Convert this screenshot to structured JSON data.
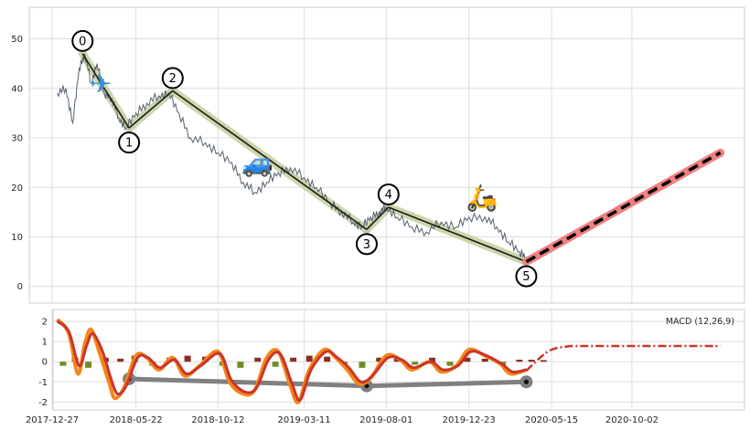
{
  "chart_data": [
    {
      "type": "line",
      "panel": "price",
      "grid": true,
      "xlim": [
        "2017-12-27",
        "2021-03-20"
      ],
      "ylim": [
        -3,
        56
      ],
      "y_ticks": [
        0,
        10,
        20,
        30,
        40,
        50
      ],
      "price_series": {
        "color": "#556070",
        "points": [
          [
            "2018-01-05",
            39
          ],
          [
            "2018-01-20",
            40
          ],
          [
            "2018-02-01",
            33
          ],
          [
            "2018-02-12",
            44
          ],
          [
            "2018-02-22",
            47
          ],
          [
            "2018-03-05",
            41
          ],
          [
            "2018-03-15",
            45
          ],
          [
            "2018-03-28",
            39
          ],
          [
            "2018-04-10",
            38
          ],
          [
            "2018-04-22",
            34
          ],
          [
            "2018-05-05",
            32
          ],
          [
            "2018-05-22",
            35
          ],
          [
            "2018-06-10",
            37
          ],
          [
            "2018-07-01",
            38.5
          ],
          [
            "2018-07-18",
            39
          ],
          [
            "2018-08-05",
            35
          ],
          [
            "2018-08-25",
            30
          ],
          [
            "2018-09-20",
            29
          ],
          [
            "2018-10-12",
            27
          ],
          [
            "2018-11-05",
            25
          ],
          [
            "2018-11-25",
            21
          ],
          [
            "2018-12-15",
            19
          ],
          [
            "2019-01-05",
            21
          ],
          [
            "2019-01-25",
            23
          ],
          [
            "2019-02-15",
            24
          ],
          [
            "2019-03-11",
            22
          ],
          [
            "2019-04-01",
            20
          ],
          [
            "2019-04-25",
            17
          ],
          [
            "2019-05-15",
            15
          ],
          [
            "2019-06-05",
            13
          ],
          [
            "2019-06-20",
            12
          ],
          [
            "2019-07-05",
            14
          ],
          [
            "2019-07-20",
            15
          ],
          [
            "2019-08-01",
            16
          ],
          [
            "2019-08-20",
            14
          ],
          [
            "2019-09-15",
            12
          ],
          [
            "2019-10-10",
            11
          ],
          [
            "2019-11-05",
            13
          ],
          [
            "2019-12-01",
            12
          ],
          [
            "2019-12-23",
            14
          ],
          [
            "2020-01-20",
            14
          ],
          [
            "2020-02-10",
            12
          ],
          [
            "2020-03-01",
            9
          ],
          [
            "2020-03-20",
            7
          ],
          [
            "2020-04-01",
            6
          ]
        ]
      },
      "wave_points": [
        {
          "label": "0",
          "date": "2018-02-18",
          "y": 47
        },
        {
          "label": "1",
          "date": "2018-05-10",
          "y": 32
        },
        {
          "label": "2",
          "date": "2018-07-25",
          "y": 39.5
        },
        {
          "label": "3",
          "date": "2019-06-28",
          "y": 11.5
        },
        {
          "label": "4",
          "date": "2019-08-05",
          "y": 16
        },
        {
          "label": "5",
          "date": "2020-04-01",
          "y": 5
        }
      ],
      "projection": {
        "from": {
          "date": "2020-04-01",
          "y": 5
        },
        "to": {
          "date": "2021-03-05",
          "y": 27
        }
      },
      "icons": [
        {
          "name": "airplane-icon",
          "glyph": "✈",
          "date": "2018-03-22",
          "y": 41
        },
        {
          "name": "car-icon",
          "glyph": "🚙",
          "date": "2018-12-20",
          "y": 25
        },
        {
          "name": "scooter-icon",
          "glyph": "🛵",
          "date": "2020-01-15",
          "y": 18
        }
      ]
    },
    {
      "type": "line",
      "panel": "macd",
      "title": "MACD (12,26,9)",
      "grid": true,
      "ylim": [
        -2.3,
        2.5
      ],
      "y_ticks": [
        -2,
        -1,
        0,
        1,
        2
      ],
      "x_tick_labels": [
        "2017-12-27",
        "2018-05-22",
        "2018-10-12",
        "2019-03-11",
        "2019-08-01",
        "2019-12-23",
        "2020-05-15",
        "2020-10-02"
      ],
      "macd_series": {
        "color": "#f58518",
        "points": [
          [
            "2018-01-05",
            2.1
          ],
          [
            "2018-01-25",
            1.4
          ],
          [
            "2018-02-10",
            -0.6
          ],
          [
            "2018-02-22",
            0.9
          ],
          [
            "2018-03-05",
            1.6
          ],
          [
            "2018-03-20",
            0.4
          ],
          [
            "2018-04-05",
            -1.0
          ],
          [
            "2018-04-15",
            -1.8
          ],
          [
            "2018-05-01",
            -1.3
          ],
          [
            "2018-05-22",
            0.3
          ],
          [
            "2018-06-10",
            0.2
          ],
          [
            "2018-07-01",
            -0.4
          ],
          [
            "2018-07-25",
            0.2
          ],
          [
            "2018-08-15",
            -0.7
          ],
          [
            "2018-09-10",
            -0.2
          ],
          [
            "2018-10-12",
            0.5
          ],
          [
            "2018-11-01",
            -1.0
          ],
          [
            "2018-11-25",
            -1.6
          ],
          [
            "2018-12-15",
            -1.4
          ],
          [
            "2019-01-05",
            0.2
          ],
          [
            "2019-01-25",
            0.5
          ],
          [
            "2019-02-15",
            -1.2
          ],
          [
            "2019-03-01",
            -2.0
          ],
          [
            "2019-03-20",
            -0.4
          ],
          [
            "2019-04-15",
            0.6
          ],
          [
            "2019-05-05",
            0.2
          ],
          [
            "2019-05-25",
            -0.4
          ],
          [
            "2019-06-15",
            -1.1
          ],
          [
            "2019-07-05",
            -0.8
          ],
          [
            "2019-08-01",
            0.3
          ],
          [
            "2019-08-25",
            0.1
          ],
          [
            "2019-09-15",
            -0.4
          ],
          [
            "2019-10-15",
            0.0
          ],
          [
            "2019-11-05",
            -0.5
          ],
          [
            "2019-12-01",
            -0.2
          ],
          [
            "2019-12-23",
            0.6
          ],
          [
            "2020-01-20",
            0.3
          ],
          [
            "2020-02-15",
            -0.1
          ],
          [
            "2020-03-05",
            -0.6
          ],
          [
            "2020-04-01",
            -0.4
          ]
        ]
      },
      "signal_series": {
        "color": "#c9352b",
        "points": [
          [
            "2018-01-05",
            2.0
          ],
          [
            "2018-01-25",
            1.5
          ],
          [
            "2018-02-12",
            -0.2
          ],
          [
            "2018-02-25",
            0.8
          ],
          [
            "2018-03-08",
            1.4
          ],
          [
            "2018-03-25",
            0.5
          ],
          [
            "2018-04-08",
            -0.8
          ],
          [
            "2018-04-20",
            -1.6
          ],
          [
            "2018-05-05",
            -1.2
          ],
          [
            "2018-05-25",
            0.2
          ],
          [
            "2018-06-12",
            0.2
          ],
          [
            "2018-07-03",
            -0.3
          ],
          [
            "2018-07-28",
            0.1
          ],
          [
            "2018-08-18",
            -0.6
          ],
          [
            "2018-09-12",
            -0.2
          ],
          [
            "2018-10-15",
            0.4
          ],
          [
            "2018-11-04",
            -0.9
          ],
          [
            "2018-11-28",
            -1.5
          ],
          [
            "2018-12-18",
            -1.3
          ],
          [
            "2019-01-08",
            0.1
          ],
          [
            "2019-01-28",
            0.4
          ],
          [
            "2019-02-18",
            -1.1
          ],
          [
            "2019-03-04",
            -1.9
          ],
          [
            "2019-03-23",
            -0.4
          ],
          [
            "2019-04-18",
            0.5
          ],
          [
            "2019-05-08",
            0.2
          ],
          [
            "2019-05-28",
            -0.3
          ],
          [
            "2019-06-18",
            -1.0
          ],
          [
            "2019-07-08",
            -0.7
          ],
          [
            "2019-08-04",
            0.2
          ],
          [
            "2019-08-28",
            0.1
          ],
          [
            "2019-09-18",
            -0.3
          ],
          [
            "2019-10-18",
            0.0
          ],
          [
            "2019-11-08",
            -0.4
          ],
          [
            "2019-12-04",
            -0.2
          ],
          [
            "2019-12-26",
            0.5
          ],
          [
            "2020-01-23",
            0.3
          ],
          [
            "2020-02-18",
            -0.1
          ],
          [
            "2020-03-08",
            -0.5
          ],
          [
            "2020-04-01",
            -0.4
          ]
        ]
      },
      "histogram": {
        "colors": {
          "positive": "#8b2f25",
          "negative": "#6b8e23"
        },
        "bars": [
          [
            "2018-01-15",
            -0.2
          ],
          [
            "2018-02-05",
            0.2
          ],
          [
            "2018-02-28",
            -0.3
          ],
          [
            "2018-03-30",
            0.2
          ],
          [
            "2018-04-25",
            0.15
          ],
          [
            "2018-05-20",
            0.3
          ],
          [
            "2018-06-20",
            -0.2
          ],
          [
            "2018-07-20",
            0.2
          ],
          [
            "2018-08-20",
            0.3
          ],
          [
            "2018-09-20",
            0.25
          ],
          [
            "2018-10-20",
            -0.2
          ],
          [
            "2018-11-20",
            -0.3
          ],
          [
            "2018-12-20",
            0.2
          ],
          [
            "2019-01-20",
            -0.25
          ],
          [
            "2019-02-20",
            0.2
          ],
          [
            "2019-03-20",
            0.3
          ],
          [
            "2019-04-20",
            0.25
          ],
          [
            "2019-05-20",
            -0.2
          ],
          [
            "2019-06-20",
            -0.3
          ],
          [
            "2019-07-20",
            0.2
          ],
          [
            "2019-08-20",
            0.15
          ],
          [
            "2019-09-20",
            -0.15
          ],
          [
            "2019-10-20",
            0.2
          ],
          [
            "2019-11-20",
            -0.2
          ],
          [
            "2019-12-20",
            0.2
          ],
          [
            "2020-01-20",
            0.15
          ],
          [
            "2020-02-20",
            -0.15
          ],
          [
            "2020-03-20",
            0.1
          ],
          [
            "2020-04-10",
            0.1
          ],
          [
            "2020-05-01",
            0.08
          ]
        ]
      },
      "projection": {
        "color": "#c9352b",
        "points": [
          [
            "2020-04-01",
            -0.45
          ],
          [
            "2020-04-25",
            0.2
          ],
          [
            "2020-05-15",
            0.6
          ],
          [
            "2020-06-10",
            0.75
          ],
          [
            "2020-07-15",
            0.78
          ],
          [
            "2021-03-05",
            0.78
          ]
        ]
      },
      "wave_markers": [
        {
          "date": "2018-05-10",
          "y": -0.85
        },
        {
          "date": "2019-06-28",
          "y": -1.2
        },
        {
          "date": "2020-04-01",
          "y": -1.0
        }
      ]
    }
  ]
}
